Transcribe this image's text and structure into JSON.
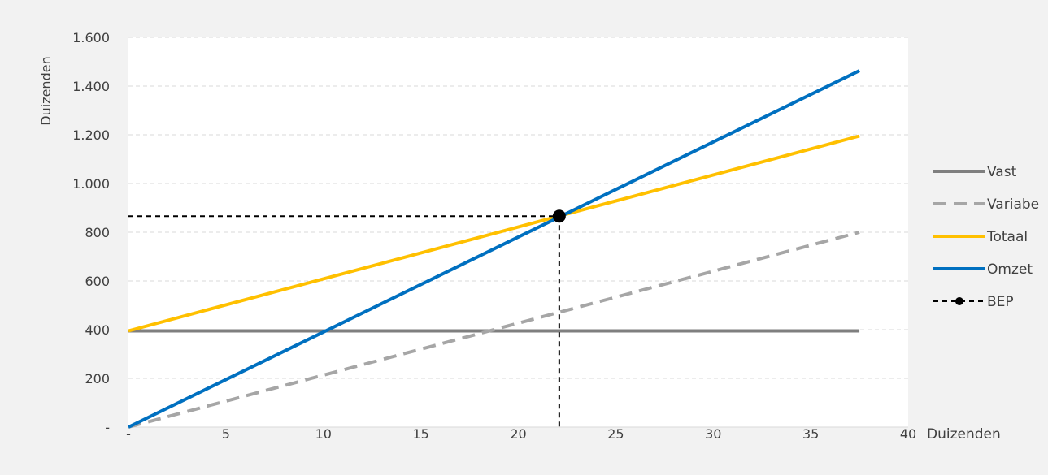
{
  "chart_data": {
    "type": "line",
    "title": "",
    "xlabel": "Duizenden",
    "ylabel": "Duizenden",
    "xlim": [
      0,
      40
    ],
    "ylim": [
      0,
      1600
    ],
    "x_ticks": [
      0,
      5,
      10,
      15,
      20,
      25,
      30,
      35,
      40
    ],
    "x_tick_labels": [
      "-",
      "5",
      "10",
      "15",
      "20",
      "25",
      "30",
      "35",
      "40"
    ],
    "y_ticks": [
      0,
      200,
      400,
      600,
      800,
      1000,
      1200,
      1400,
      1600
    ],
    "y_tick_labels": [
      "-",
      "200",
      "400",
      "600",
      "800",
      "1.000",
      "1.200",
      "1.400",
      "1.600"
    ],
    "grid": true,
    "legend_position": "right",
    "series": [
      {
        "name": "Vast",
        "color": "#7f7f7f",
        "dash": "solid",
        "x": [
          0,
          37.5
        ],
        "y": [
          395,
          395
        ]
      },
      {
        "name": "Variabe",
        "color": "#a6a6a6",
        "dash": "dashed",
        "x": [
          0,
          37.5
        ],
        "y": [
          0,
          800
        ]
      },
      {
        "name": "Totaal",
        "color": "#ffc000",
        "dash": "solid",
        "x": [
          0,
          37.5
        ],
        "y": [
          395,
          1195
        ]
      },
      {
        "name": "Omzet",
        "color": "#0070c0",
        "dash": "solid",
        "x": [
          0,
          37.5
        ],
        "y": [
          0,
          1463
        ]
      }
    ],
    "bep": {
      "name": "BEP",
      "color": "#000000",
      "x": 22.1,
      "y": 866
    }
  }
}
